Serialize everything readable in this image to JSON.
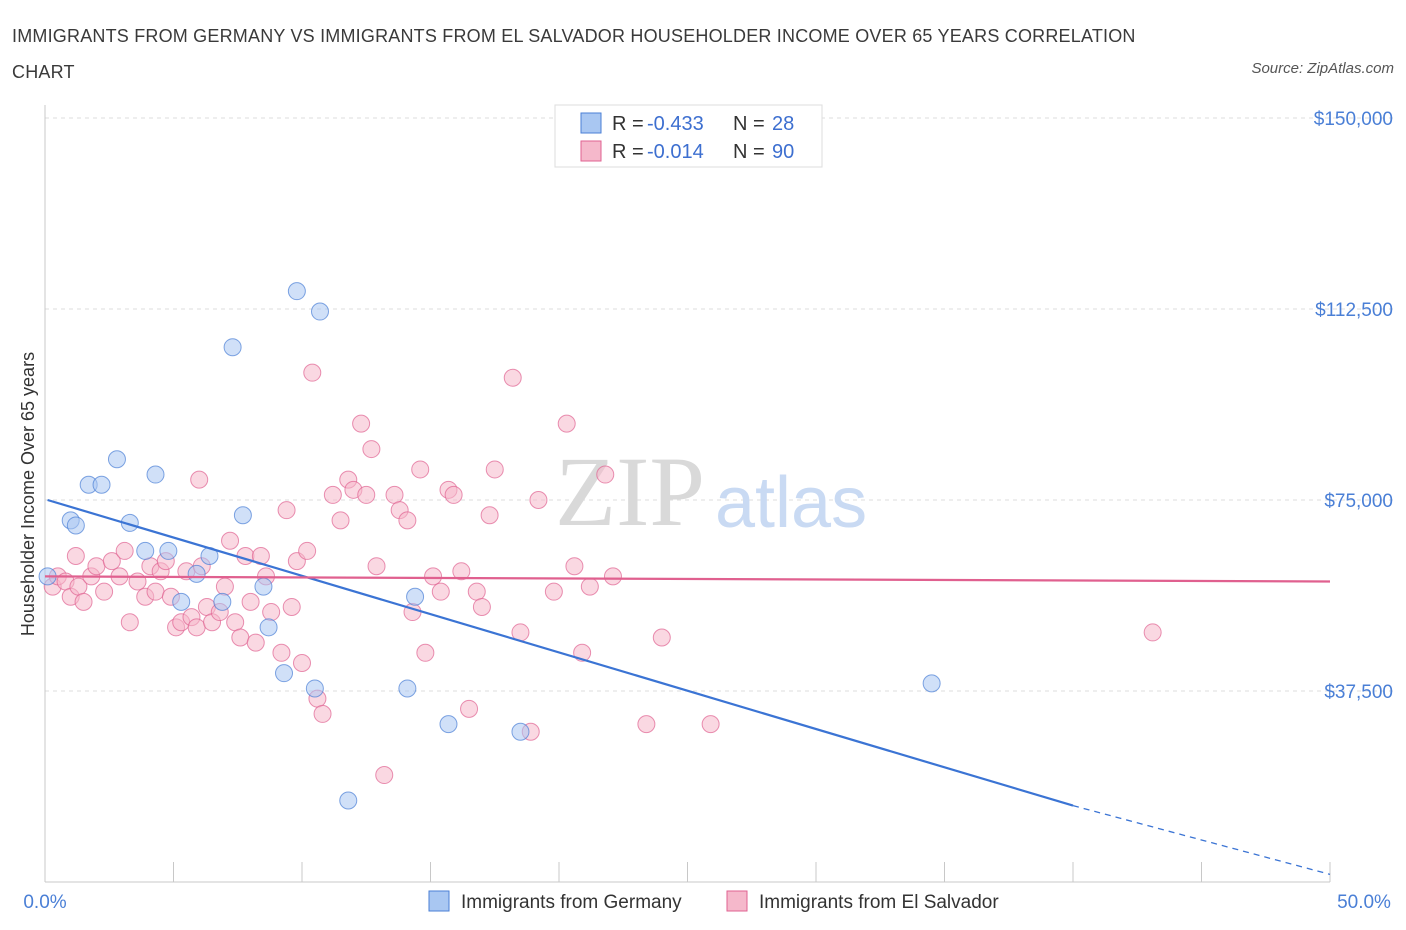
{
  "title": "IMMIGRANTS FROM GERMANY VS IMMIGRANTS FROM EL SALVADOR HOUSEHOLDER INCOME OVER 65 YEARS CORRELATION CHART",
  "source": "Source: ZipAtlas.com",
  "watermark": {
    "zip": "ZIP",
    "atlas": "atlas"
  },
  "legend_top": [
    {
      "r_label": "R = ",
      "r_value": "-0.433",
      "n_label": "N = ",
      "n_value": "28",
      "color": "#a9c7f2"
    },
    {
      "r_label": "R = ",
      "r_value": "-0.014",
      "n_label": "N = ",
      "n_value": "90",
      "color": "#f5b8cb"
    }
  ],
  "chart_data": {
    "type": "scatter",
    "title": "IMMIGRANTS FROM GERMANY VS IMMIGRANTS FROM EL SALVADOR HOUSEHOLDER INCOME OVER 65 YEARS CORRELATION CHART",
    "xlabel": "",
    "ylabel": "Householder Income Over 65 years",
    "xlim": [
      0,
      50
    ],
    "ylim": [
      0,
      150000
    ],
    "x_tick_labels": [
      "0.0%",
      "50.0%"
    ],
    "y_ticks": [
      {
        "value": 37500,
        "label": "$37,500"
      },
      {
        "value": 75000,
        "label": "$75,000"
      },
      {
        "value": 112500,
        "label": "$112,500"
      },
      {
        "value": 150000,
        "label": "$150,000"
      }
    ],
    "grid": true,
    "series": [
      {
        "name": "Immigrants from Germany",
        "color": "#4a7fd6",
        "fill": "#a9c7f2",
        "trend": {
          "x0": 0.1,
          "y0": 75000,
          "x1": 40,
          "y1": 15000,
          "dash_to_x": 50,
          "dash_to_y": 1500
        },
        "points": [
          [
            0.1,
            60000
          ],
          [
            1.0,
            71000
          ],
          [
            1.2,
            70000
          ],
          [
            1.7,
            78000
          ],
          [
            2.2,
            78000
          ],
          [
            2.8,
            83000
          ],
          [
            3.3,
            70500
          ],
          [
            3.9,
            65000
          ],
          [
            4.3,
            80000
          ],
          [
            4.8,
            65000
          ],
          [
            5.3,
            55000
          ],
          [
            5.9,
            60500
          ],
          [
            6.4,
            64000
          ],
          [
            6.9,
            55000
          ],
          [
            7.3,
            105000
          ],
          [
            7.7,
            72000
          ],
          [
            8.5,
            58000
          ],
          [
            8.7,
            50000
          ],
          [
            9.3,
            41000
          ],
          [
            9.8,
            116000
          ],
          [
            10.5,
            38000
          ],
          [
            10.7,
            112000
          ],
          [
            11.8,
            16000
          ],
          [
            14.1,
            38000
          ],
          [
            14.4,
            56000
          ],
          [
            15.7,
            31000
          ],
          [
            18.5,
            29500
          ],
          [
            34.5,
            39000
          ]
        ]
      },
      {
        "name": "Immigrants from El Salvador",
        "color": "#e06291",
        "fill": "#f5b8cb",
        "trend": {
          "x0": 0,
          "y0": 60000,
          "x1": 50,
          "y1": 59000
        },
        "points": [
          [
            0.3,
            58000
          ],
          [
            0.5,
            60000
          ],
          [
            0.8,
            59000
          ],
          [
            1.0,
            56000
          ],
          [
            1.3,
            58000
          ],
          [
            1.5,
            55000
          ],
          [
            1.8,
            60000
          ],
          [
            2.0,
            62000
          ],
          [
            2.3,
            57000
          ],
          [
            2.6,
            63000
          ],
          [
            2.9,
            60000
          ],
          [
            3.1,
            65000
          ],
          [
            3.3,
            51000
          ],
          [
            3.6,
            59000
          ],
          [
            3.9,
            56000
          ],
          [
            4.1,
            62000
          ],
          [
            4.3,
            57000
          ],
          [
            4.5,
            61000
          ],
          [
            4.7,
            63000
          ],
          [
            4.9,
            56000
          ],
          [
            5.1,
            50000
          ],
          [
            5.3,
            51000
          ],
          [
            5.5,
            61000
          ],
          [
            5.7,
            52000
          ],
          [
            5.9,
            50000
          ],
          [
            6.1,
            62000
          ],
          [
            6.3,
            54000
          ],
          [
            6.5,
            51000
          ],
          [
            6.8,
            53000
          ],
          [
            7.0,
            58000
          ],
          [
            7.2,
            67000
          ],
          [
            7.4,
            51000
          ],
          [
            7.6,
            48000
          ],
          [
            7.8,
            64000
          ],
          [
            8.0,
            55000
          ],
          [
            8.2,
            47000
          ],
          [
            8.4,
            64000
          ],
          [
            8.6,
            60000
          ],
          [
            8.8,
            53000
          ],
          [
            9.2,
            45000
          ],
          [
            9.4,
            73000
          ],
          [
            9.6,
            54000
          ],
          [
            9.8,
            63000
          ],
          [
            10.0,
            43000
          ],
          [
            10.2,
            65000
          ],
          [
            10.4,
            100000
          ],
          [
            10.6,
            36000
          ],
          [
            10.8,
            33000
          ],
          [
            11.2,
            76000
          ],
          [
            11.5,
            71000
          ],
          [
            11.8,
            79000
          ],
          [
            12.0,
            77000
          ],
          [
            12.3,
            90000
          ],
          [
            12.5,
            76000
          ],
          [
            12.7,
            85000
          ],
          [
            12.9,
            62000
          ],
          [
            13.2,
            21000
          ],
          [
            13.6,
            76000
          ],
          [
            13.8,
            73000
          ],
          [
            14.1,
            71000
          ],
          [
            14.3,
            53000
          ],
          [
            14.6,
            81000
          ],
          [
            14.8,
            45000
          ],
          [
            15.1,
            60000
          ],
          [
            15.4,
            57000
          ],
          [
            15.7,
            77000
          ],
          [
            15.9,
            76000
          ],
          [
            16.2,
            61000
          ],
          [
            16.5,
            34000
          ],
          [
            16.8,
            57000
          ],
          [
            17.0,
            54000
          ],
          [
            17.3,
            72000
          ],
          [
            17.5,
            81000
          ],
          [
            18.2,
            99000
          ],
          [
            18.5,
            49000
          ],
          [
            18.9,
            29500
          ],
          [
            19.2,
            75000
          ],
          [
            19.8,
            57000
          ],
          [
            20.3,
            90000
          ],
          [
            20.6,
            62000
          ],
          [
            20.9,
            45000
          ],
          [
            21.2,
            58000
          ],
          [
            21.8,
            80000
          ],
          [
            22.1,
            60000
          ],
          [
            23.4,
            31000
          ],
          [
            24.0,
            48000
          ],
          [
            25.9,
            31000
          ],
          [
            43.1,
            49000
          ],
          [
            1.2,
            64000
          ],
          [
            6.0,
            79000
          ]
        ]
      }
    ]
  },
  "bottom_legend": [
    {
      "label": "Immigrants from Germany",
      "color": "#a9c7f2",
      "stroke": "#4a7fd6"
    },
    {
      "label": "Immigrants from El Salvador",
      "color": "#f5b8cb",
      "stroke": "#e06291"
    }
  ]
}
